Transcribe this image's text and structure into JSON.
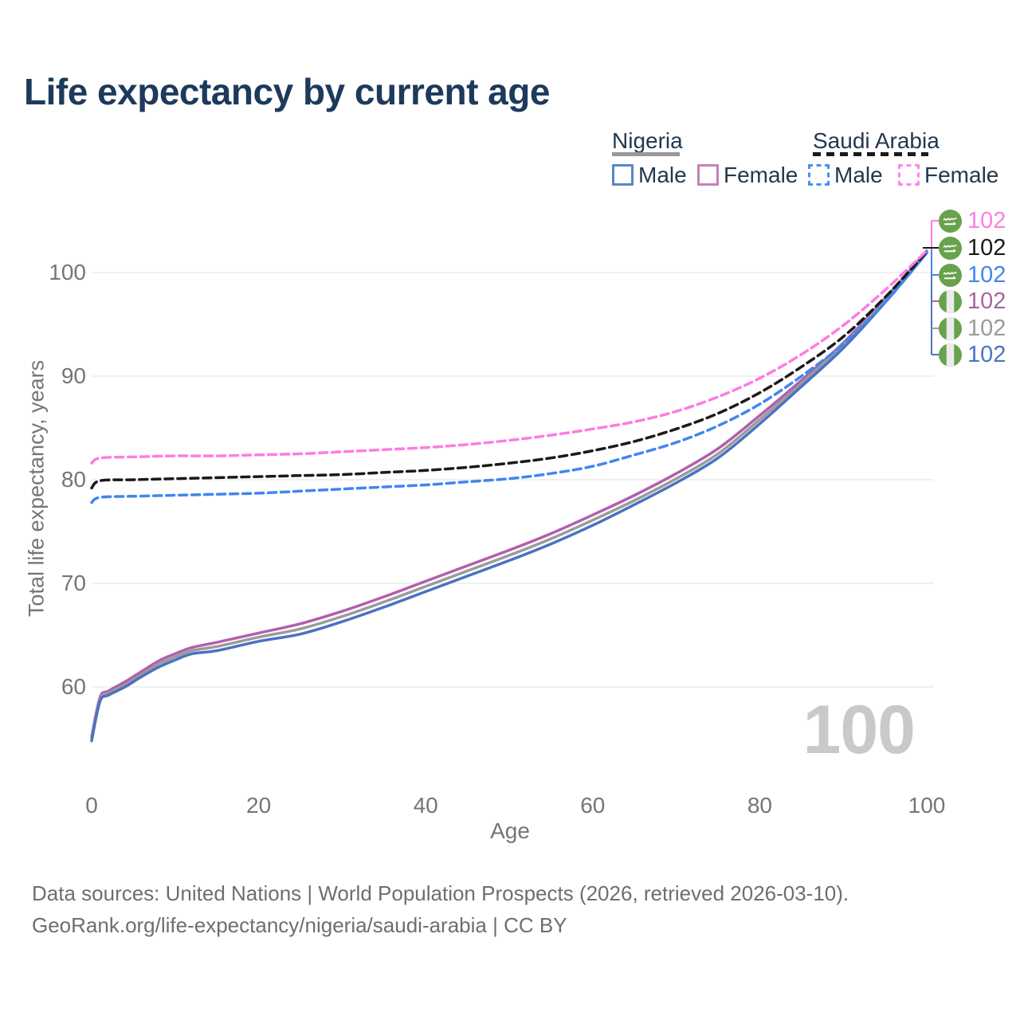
{
  "title": "Life expectancy by current age",
  "legend": {
    "groups": [
      {
        "country": "Nigeria",
        "line_style": "solid",
        "underline_color": "#999999",
        "items": [
          {
            "label": "Male",
            "color": "#5c85c7",
            "dashed": false
          },
          {
            "label": "Female",
            "color": "#c183b7",
            "dashed": false
          }
        ]
      },
      {
        "country": "Saudi Arabia",
        "line_style": "dashed",
        "underline_color": "#1a1a1a",
        "items": [
          {
            "label": "Male",
            "color": "#4b8cf5",
            "dashed": true
          },
          {
            "label": "Female",
            "color": "#fd86e9",
            "dashed": true
          }
        ]
      }
    ]
  },
  "axes": {
    "y_title": "Total life expectancy, years",
    "x_title": "Age",
    "y_ticks": [
      100,
      90,
      80,
      70,
      60
    ],
    "x_ticks": [
      0,
      20,
      40,
      60,
      80,
      100
    ]
  },
  "end_labels": [
    {
      "value": "102",
      "color": "#fd7ce2",
      "flag": "saudi-arabia"
    },
    {
      "value": "102",
      "color": "#1a1a1a",
      "flag": "saudi-arabia"
    },
    {
      "value": "102",
      "color": "#4186ef",
      "flag": "saudi-arabia"
    },
    {
      "value": "102",
      "color": "#a8649f",
      "flag": "nigeria"
    },
    {
      "value": "102",
      "color": "#9a9a9a",
      "flag": "nigeria"
    },
    {
      "value": "102",
      "color": "#4a74c2",
      "flag": "nigeria"
    }
  ],
  "watermark": "100",
  "flag_colors": {
    "green": "#68a24c",
    "white_stripe": "#ececec"
  },
  "footer": {
    "line1": "Data sources: United Nations | World Population Prospects (2026, retrieved 2026-03-10).",
    "line2": "GeoRank.org/life-expectancy/nigeria/saudi-arabia | CC BY"
  },
  "chart_data": {
    "type": "line",
    "title": "Life expectancy by current age",
    "xlabel": "Age",
    "ylabel": "Total life expectancy, years",
    "xlim": [
      0,
      100
    ],
    "ylim": [
      54,
      103
    ],
    "x_ticks": [
      0,
      20,
      40,
      60,
      80,
      100
    ],
    "y_ticks": [
      100,
      90,
      80,
      70,
      60
    ],
    "grid": "horizontal",
    "legend_position": "top-right",
    "series": [
      {
        "id": "nigeria-female",
        "name": "Nigeria — Female",
        "country": "Nigeria",
        "sex": "female",
        "color": "#b25fae",
        "dash": false,
        "points": [
          [
            0,
            55.2
          ],
          [
            1,
            59.0
          ],
          [
            2,
            59.6
          ],
          [
            4,
            60.5
          ],
          [
            6,
            61.5
          ],
          [
            8,
            62.5
          ],
          [
            10,
            63.2
          ],
          [
            12,
            63.8
          ],
          [
            15,
            64.3
          ],
          [
            20,
            65.2
          ],
          [
            25,
            66.1
          ],
          [
            30,
            67.3
          ],
          [
            35,
            68.7
          ],
          [
            40,
            70.2
          ],
          [
            45,
            71.7
          ],
          [
            50,
            73.2
          ],
          [
            55,
            74.8
          ],
          [
            60,
            76.6
          ],
          [
            65,
            78.5
          ],
          [
            70,
            80.6
          ],
          [
            75,
            83.0
          ],
          [
            80,
            86.2
          ],
          [
            85,
            89.6
          ],
          [
            90,
            93.2
          ],
          [
            95,
            97.5
          ],
          [
            100,
            102.1
          ]
        ]
      },
      {
        "id": "nigeria-total",
        "name": "Nigeria — Total",
        "country": "Nigeria",
        "sex": "total",
        "color": "#9b9b9b",
        "dash": false,
        "points": [
          [
            0,
            55.0
          ],
          [
            1,
            58.8
          ],
          [
            2,
            59.4
          ],
          [
            4,
            60.2
          ],
          [
            6,
            61.2
          ],
          [
            8,
            62.2
          ],
          [
            10,
            62.9
          ],
          [
            12,
            63.5
          ],
          [
            15,
            63.9
          ],
          [
            20,
            64.8
          ],
          [
            25,
            65.6
          ],
          [
            30,
            66.8
          ],
          [
            35,
            68.2
          ],
          [
            40,
            69.7
          ],
          [
            45,
            71.2
          ],
          [
            50,
            72.7
          ],
          [
            55,
            74.3
          ],
          [
            60,
            76.1
          ],
          [
            65,
            78.0
          ],
          [
            70,
            80.1
          ],
          [
            75,
            82.5
          ],
          [
            80,
            85.8
          ],
          [
            85,
            89.3
          ],
          [
            90,
            93.0
          ],
          [
            95,
            97.3
          ],
          [
            100,
            102.0
          ]
        ]
      },
      {
        "id": "nigeria-male",
        "name": "Nigeria — Male",
        "country": "Nigeria",
        "sex": "male",
        "color": "#4a72c0",
        "dash": false,
        "points": [
          [
            0,
            54.8
          ],
          [
            1,
            58.6
          ],
          [
            2,
            59.2
          ],
          [
            4,
            60.0
          ],
          [
            6,
            61.0
          ],
          [
            8,
            61.9
          ],
          [
            10,
            62.6
          ],
          [
            12,
            63.2
          ],
          [
            15,
            63.5
          ],
          [
            20,
            64.4
          ],
          [
            25,
            65.1
          ],
          [
            30,
            66.3
          ],
          [
            35,
            67.7
          ],
          [
            40,
            69.2
          ],
          [
            45,
            70.7
          ],
          [
            50,
            72.2
          ],
          [
            55,
            73.8
          ],
          [
            60,
            75.6
          ],
          [
            65,
            77.6
          ],
          [
            70,
            79.7
          ],
          [
            75,
            82.1
          ],
          [
            80,
            85.4
          ],
          [
            85,
            89.0
          ],
          [
            90,
            92.7
          ],
          [
            95,
            97.1
          ],
          [
            100,
            101.9
          ]
        ]
      },
      {
        "id": "saudi-arabia-male",
        "name": "Saudi Arabia — Male",
        "country": "Saudi Arabia",
        "sex": "male",
        "color": "#4186ef",
        "dash": true,
        "points": [
          [
            0,
            77.8
          ],
          [
            1,
            78.3
          ],
          [
            5,
            78.4
          ],
          [
            10,
            78.5
          ],
          [
            15,
            78.6
          ],
          [
            20,
            78.7
          ],
          [
            25,
            78.9
          ],
          [
            30,
            79.1
          ],
          [
            35,
            79.3
          ],
          [
            40,
            79.5
          ],
          [
            45,
            79.8
          ],
          [
            50,
            80.1
          ],
          [
            55,
            80.6
          ],
          [
            60,
            81.3
          ],
          [
            65,
            82.4
          ],
          [
            70,
            83.6
          ],
          [
            75,
            85.2
          ],
          [
            80,
            87.3
          ],
          [
            85,
            90.0
          ],
          [
            90,
            93.1
          ],
          [
            95,
            97.1
          ],
          [
            100,
            101.9
          ]
        ]
      },
      {
        "id": "saudi-arabia-total",
        "name": "Saudi Arabia — Total",
        "country": "Saudi Arabia",
        "sex": "total",
        "color": "#1a1a1a",
        "dash": true,
        "points": [
          [
            0,
            79.2
          ],
          [
            1,
            79.9
          ],
          [
            5,
            80.0
          ],
          [
            10,
            80.1
          ],
          [
            15,
            80.2
          ],
          [
            20,
            80.3
          ],
          [
            25,
            80.4
          ],
          [
            30,
            80.5
          ],
          [
            35,
            80.7
          ],
          [
            40,
            80.9
          ],
          [
            45,
            81.2
          ],
          [
            50,
            81.6
          ],
          [
            55,
            82.1
          ],
          [
            60,
            82.8
          ],
          [
            65,
            83.7
          ],
          [
            70,
            84.9
          ],
          [
            75,
            86.4
          ],
          [
            80,
            88.4
          ],
          [
            85,
            90.9
          ],
          [
            90,
            93.8
          ],
          [
            95,
            97.6
          ],
          [
            100,
            102.0
          ]
        ]
      },
      {
        "id": "saudi-arabia-female",
        "name": "Saudi Arabia — Female",
        "country": "Saudi Arabia",
        "sex": "female",
        "color": "#fd7ce2",
        "dash": true,
        "points": [
          [
            0,
            81.6
          ],
          [
            1,
            82.1
          ],
          [
            5,
            82.2
          ],
          [
            10,
            82.3
          ],
          [
            15,
            82.3
          ],
          [
            20,
            82.4
          ],
          [
            25,
            82.5
          ],
          [
            30,
            82.7
          ],
          [
            35,
            82.9
          ],
          [
            40,
            83.1
          ],
          [
            45,
            83.4
          ],
          [
            50,
            83.8
          ],
          [
            55,
            84.3
          ],
          [
            60,
            84.9
          ],
          [
            65,
            85.6
          ],
          [
            70,
            86.6
          ],
          [
            75,
            88.0
          ],
          [
            80,
            89.8
          ],
          [
            85,
            92.1
          ],
          [
            90,
            94.9
          ],
          [
            95,
            98.3
          ],
          [
            100,
            102.1
          ]
        ]
      }
    ]
  }
}
